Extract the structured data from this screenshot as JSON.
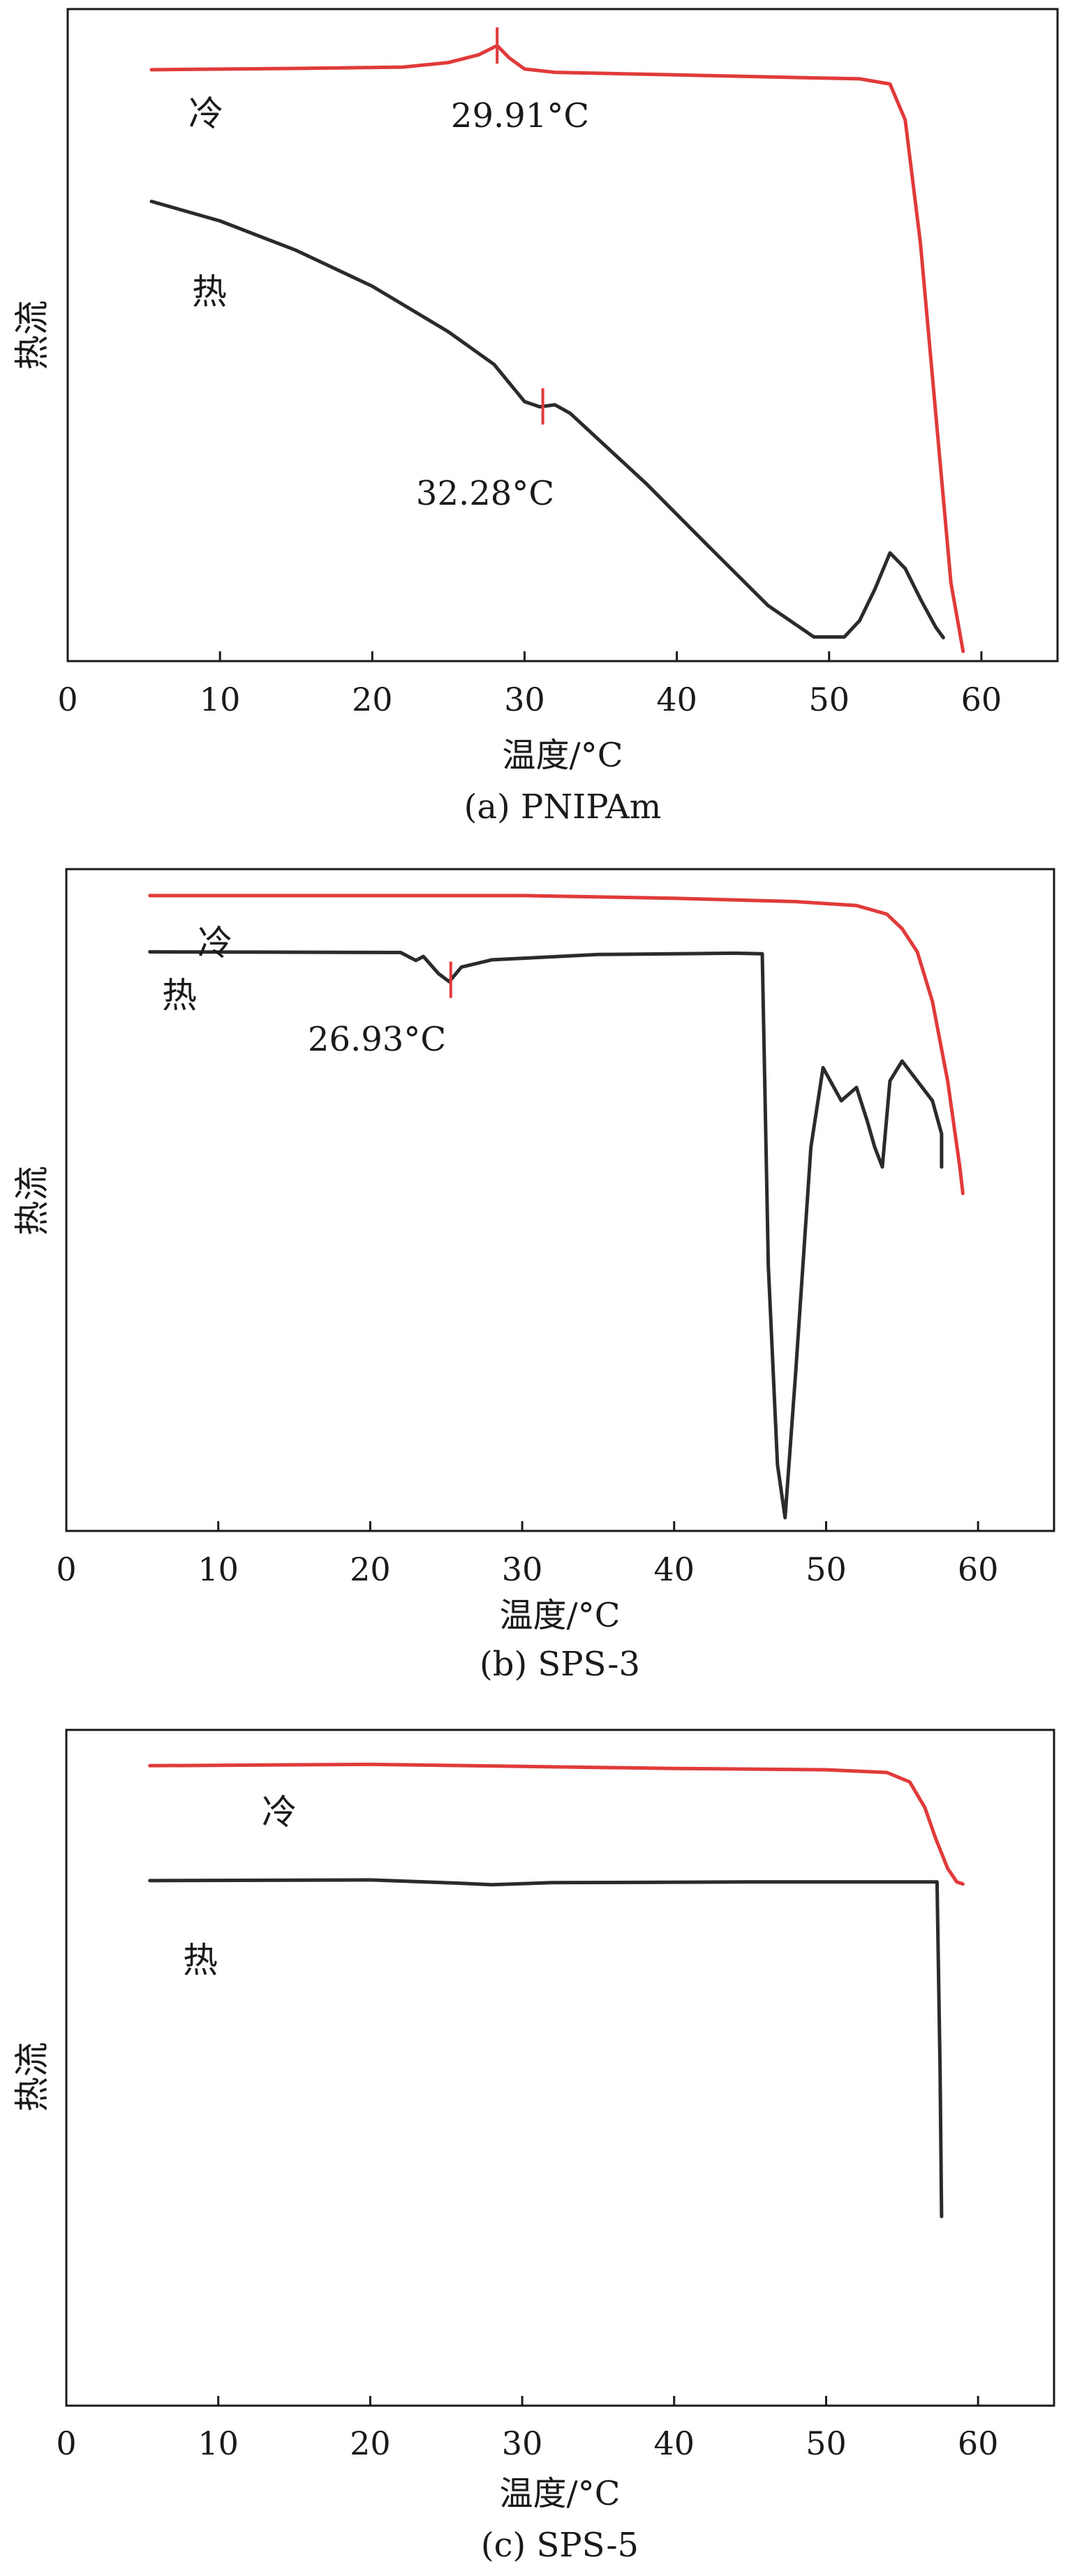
{
  "chart_data": [
    {
      "type": "line",
      "caption": "(a) PNIPAm",
      "xlabel": "温度/°C",
      "ylabel": "热流",
      "xlim": [
        0,
        65
      ],
      "ylim": [
        0,
        100
      ],
      "xticks": [
        0,
        10,
        20,
        30,
        40,
        50,
        60
      ],
      "series": [
        {
          "name": "冷",
          "color": "#e03a3a",
          "x": [
            5.5,
            15,
            22,
            25,
            27,
            28.2,
            29,
            30,
            32,
            40,
            48,
            52,
            54,
            55,
            56,
            57,
            58,
            58.8
          ],
          "y": [
            90.7,
            90.9,
            91.1,
            91.8,
            93,
            94.4,
            92.5,
            90.8,
            90.3,
            89.9,
            89.5,
            89.3,
            88.5,
            83,
            64,
            38,
            12,
            1.5
          ]
        },
        {
          "name": "热",
          "color": "#2b2b2b",
          "x": [
            5.5,
            10,
            15,
            20,
            25,
            28,
            30,
            31,
            32,
            33,
            38,
            42,
            46,
            49,
            51,
            52,
            53,
            54,
            55,
            56,
            57,
            57.5
          ],
          "y": [
            70.5,
            67.5,
            63,
            57.5,
            50.5,
            45.5,
            39.8,
            39,
            39.3,
            38,
            27.2,
            17.8,
            8.5,
            3.7,
            3.7,
            6.2,
            11,
            16.6,
            14.2,
            9.5,
            5.2,
            3.6
          ]
        }
      ],
      "annotations": [
        {
          "series": "冷",
          "x": 28.2,
          "label": "29.91°C"
        },
        {
          "series": "热",
          "x": 31.2,
          "label": "32.28°C"
        }
      ]
    },
    {
      "type": "line",
      "caption": "(b) SPS-3",
      "xlabel": "温度/°C",
      "ylabel": "热流",
      "xlim": [
        0,
        65
      ],
      "ylim": [
        0,
        100
      ],
      "xticks": [
        0,
        10,
        20,
        30,
        40,
        50,
        60
      ],
      "series": [
        {
          "name": "冷",
          "color": "#e03a3a",
          "x": [
            5.5,
            20,
            30,
            40,
            48,
            52,
            54,
            55,
            56,
            57,
            58,
            58.8,
            59
          ],
          "y": [
            96,
            96,
            96,
            95.6,
            95.1,
            94.5,
            93.2,
            91,
            87.5,
            80,
            68,
            55,
            51
          ]
        },
        {
          "name": "热",
          "color": "#2b2b2b",
          "x": [
            5.5,
            22,
            23,
            23.5,
            24.5,
            25.2,
            26,
            28,
            35,
            44,
            45.8,
            46.2,
            46.8,
            47.3,
            48,
            49,
            49.8,
            51,
            52,
            52.7,
            53.2,
            53.7,
            54.2,
            55,
            56,
            57,
            57.6,
            57.6
          ],
          "y": [
            87.5,
            87.4,
            86.2,
            86.8,
            84.2,
            83,
            85.2,
            86.3,
            87.1,
            87.3,
            87.2,
            40,
            10,
            2,
            24,
            58,
            70,
            65,
            67,
            62,
            58,
            55,
            68,
            71,
            68,
            65,
            60,
            55
          ]
        }
      ],
      "annotations": [
        {
          "series": "热",
          "x": 25.3,
          "label": "26.93°C"
        }
      ]
    },
    {
      "type": "line",
      "caption": "(c) SPS-5",
      "xlabel": "温度/°C",
      "ylabel": "热流",
      "xlim": [
        0,
        65
      ],
      "ylim": [
        0,
        100
      ],
      "xticks": [
        0,
        10,
        20,
        30,
        40,
        50,
        60
      ],
      "series": [
        {
          "name": "冷",
          "color": "#e03a3a",
          "x": [
            5.5,
            20,
            30,
            40,
            50,
            54,
            55.5,
            56.5,
            57.2,
            58,
            58.6,
            59
          ],
          "y": [
            94.7,
            94.9,
            94.6,
            94.3,
            94.1,
            93.7,
            92.3,
            88.5,
            84,
            79.5,
            77.5,
            77.2
          ]
        },
        {
          "name": "热",
          "color": "#2b2b2b",
          "x": [
            5.5,
            20,
            26,
            28,
            32,
            45,
            55,
            57.3,
            57.5,
            57.6
          ],
          "y": [
            77.7,
            77.8,
            77.3,
            77.1,
            77.4,
            77.5,
            77.5,
            77.5,
            50,
            28
          ]
        }
      ],
      "annotations": []
    }
  ]
}
